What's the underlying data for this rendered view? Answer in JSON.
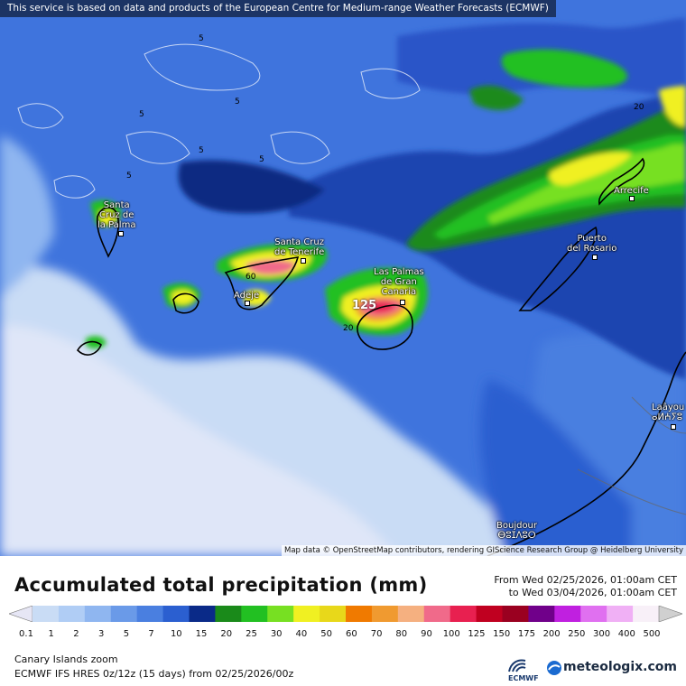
{
  "header": {
    "service_note": "This service is based on data and products of the European Centre for Medium-range Weather Forecasts (ECMWF)"
  },
  "map": {
    "attribution": "Map data © OpenStreetMap contributors, rendering GIScience Research Group @ Heidelberg University",
    "cities": [
      {
        "label": "Santa\nCruz de\nla Palma"
      },
      {
        "label": "Santa Cruz\nde Tenerife"
      },
      {
        "label": "Adeje"
      },
      {
        "label": "Las Palmas\nde Gran\nCanaria"
      },
      {
        "label": "Puerto\ndel Rosario"
      },
      {
        "label": "Arrecife"
      },
      {
        "label": "Laâyou\nⴰⵍⵄⵢⵓ"
      },
      {
        "label": "Boujdour\nⴱⵓⵊⴷⵓⵔ"
      }
    ],
    "contour_labels": [
      "5",
      "5",
      "5",
      "5",
      "5",
      "5",
      "20",
      "20",
      "60",
      "125"
    ]
  },
  "legend": {
    "title": "Accumulated total precipitation (mm)",
    "from": "From Wed 02/25/2026, 01:00am CET",
    "to": "to Wed 03/04/2026, 01:00am CET",
    "ticks": [
      "0.1",
      "1",
      "2",
      "3",
      "5",
      "7",
      "10",
      "15",
      "20",
      "25",
      "30",
      "40",
      "50",
      "60",
      "70",
      "80",
      "90",
      "100",
      "125",
      "150",
      "175",
      "200",
      "250",
      "300",
      "400",
      "500"
    ],
    "colors": [
      "#e6e6f5",
      "#c9dcf5",
      "#b0cdf5",
      "#8fb6f0",
      "#6a9ae8",
      "#4a7fe0",
      "#2b5fd0",
      "#0a2a88",
      "#1a8a1a",
      "#22c022",
      "#77e022",
      "#f0f022",
      "#e8d81a",
      "#f07a00",
      "#f09a30",
      "#f5b080",
      "#f06a8a",
      "#e82050",
      "#c00020",
      "#9a0020",
      "#70008a",
      "#c020e0",
      "#e070f0",
      "#f0b0f5",
      "#f8f0f8",
      "#d0d0d0"
    ],
    "region": "Canary Islands zoom",
    "model": "ECMWF IFS HRES 0z/12z (15 days) from 02/25/2026/00z",
    "ecmwf": "ECMWF",
    "brand": "meteologix.com"
  }
}
